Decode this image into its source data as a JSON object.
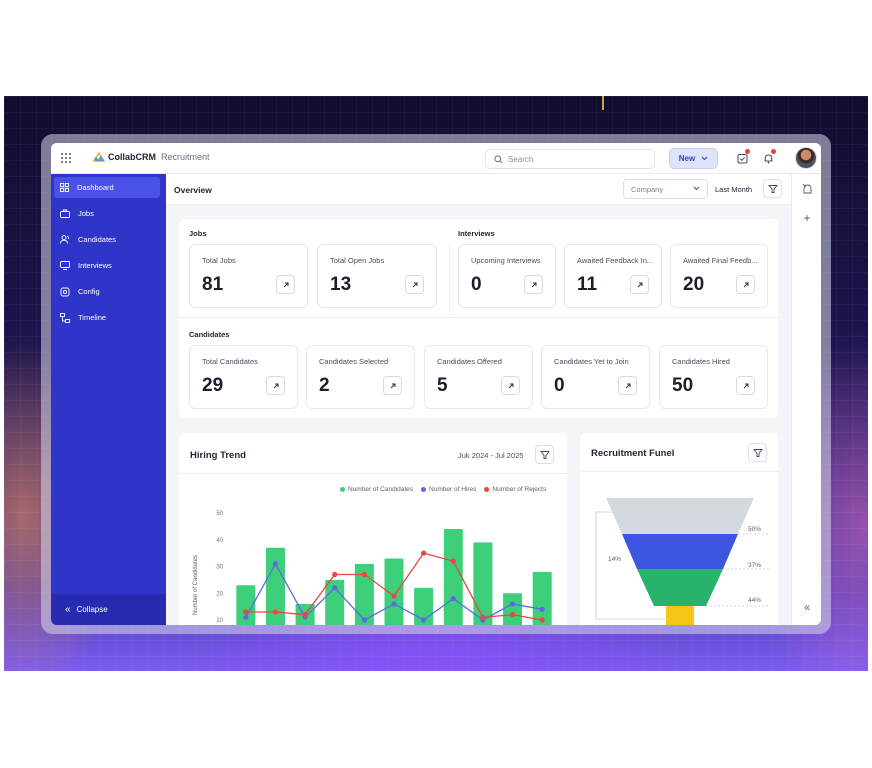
{
  "app": {
    "brand_name": "CollabCRM",
    "brand_sub": "Recruitment"
  },
  "topbar": {
    "search_placeholder": "Search",
    "new_label": "New"
  },
  "sidebar": {
    "items": [
      {
        "label": "Dashboard",
        "icon": "dashboard-icon",
        "active": true
      },
      {
        "label": "Jobs",
        "icon": "briefcase-icon"
      },
      {
        "label": "Candidates",
        "icon": "users-icon"
      },
      {
        "label": "Interviews",
        "icon": "monitor-icon"
      },
      {
        "label": "Config",
        "icon": "config-icon"
      },
      {
        "label": "Timeline",
        "icon": "timeline-icon"
      }
    ],
    "collapse_label": "Collapse"
  },
  "header": {
    "title": "Overview",
    "company_placeholder": "Company",
    "period": "Last Month"
  },
  "jobs": {
    "title": "Jobs",
    "cards": [
      {
        "label": "Total Jobs",
        "value": "81"
      },
      {
        "label": "Total Open Jobs",
        "value": "13"
      }
    ]
  },
  "interviews": {
    "title": "Interviews",
    "cards": [
      {
        "label": "Upcoming Interviews",
        "value": "0"
      },
      {
        "label": "Awaited Feedback In...",
        "value": "11"
      },
      {
        "label": "Awaited Final Feedb...",
        "value": "20"
      }
    ]
  },
  "candidates": {
    "title": "Candidates",
    "cards": [
      {
        "label": "Total Candidates",
        "value": "29"
      },
      {
        "label": "Candidates Selected",
        "value": "2"
      },
      {
        "label": "Candidates Offered",
        "value": "5"
      },
      {
        "label": "Candidates Yet to Join",
        "value": "0"
      },
      {
        "label": "Candidates Hired",
        "value": "50"
      }
    ]
  },
  "hiring_trend": {
    "title": "Hiring Trend",
    "range": "Juk 2024 - Jul 2025",
    "ylabel": "Number of Candidates",
    "legend": [
      "Number of Candidates",
      "Number of Hires",
      "Number of Rejects"
    ],
    "colors": {
      "candidates": "#3ecf7a",
      "hires": "#5b6ae8",
      "rejects": "#e5493f"
    }
  },
  "funnel": {
    "title": "Recruitment Funel",
    "labels": [
      "50%",
      "14%",
      "37%",
      "44%"
    ],
    "colors": [
      "#d4d8df",
      "#3d55e0",
      "#27b36b",
      "#f5c518"
    ]
  },
  "chart_data": {
    "type": "bar",
    "title": "Hiring Trend",
    "ylabel": "Number of Candidates",
    "ylim": [
      10,
      50
    ],
    "yticks": [
      10,
      20,
      30,
      40,
      50
    ],
    "categories": [
      "",
      "",
      "",
      "",
      "",
      "",
      "",
      "",
      "",
      "",
      ""
    ],
    "series": [
      {
        "name": "Number of Candidates",
        "type": "bar",
        "values": [
          23,
          37,
          16,
          25,
          31,
          33,
          22,
          44,
          39,
          20,
          28
        ]
      },
      {
        "name": "Number of Hires",
        "type": "line",
        "values": [
          11,
          31,
          11,
          22,
          10,
          16,
          10,
          18,
          10,
          16,
          14
        ]
      },
      {
        "name": "Number of Rejects",
        "type": "line",
        "values": [
          13,
          13,
          12,
          27,
          27,
          19,
          35,
          32,
          11,
          12,
          10
        ]
      }
    ]
  }
}
